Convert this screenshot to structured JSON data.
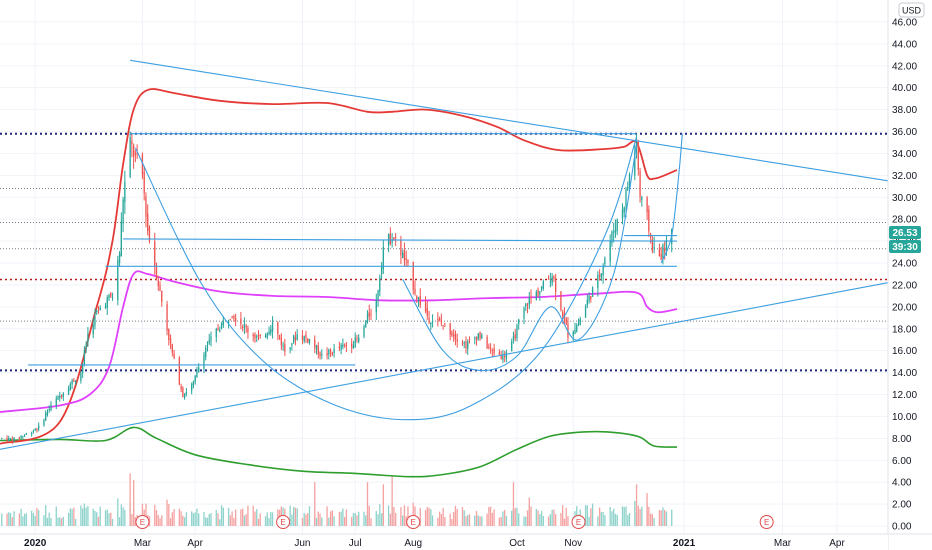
{
  "colors": {
    "up": "#26a69a",
    "down": "#ef5350",
    "trendline": "#3d9fe0",
    "bb_upper": "#e53935",
    "bb_lower": "#e040fb",
    "ma_bottom": "#2e9e2e",
    "grid": "#f0f3fa",
    "level_navy": "#1a237e",
    "level_red": "#b71c1c",
    "badge_price": "#26a69a",
    "badge_timer": "#26a69a",
    "earnings": "#e0494b",
    "axis_text": "#131722"
  },
  "currency_label": "USD",
  "price_badge": "26.53",
  "timer_badge": "39:30",
  "earnings_marker": "E",
  "chart_data": {
    "type": "candlestick",
    "y_axis": {
      "min": 0,
      "max": 48,
      "ticks": [
        "0.00",
        "2.00",
        "4.00",
        "6.00",
        "8.00",
        "10.00",
        "12.00",
        "14.00",
        "16.00",
        "18.00",
        "20.00",
        "22.00",
        "24.00",
        "26.00",
        "28.00",
        "30.00",
        "32.00",
        "34.00",
        "36.00",
        "38.00",
        "40.00",
        "42.00",
        "44.00",
        "46.00"
      ]
    },
    "x_axis": {
      "start": "2019-12-12",
      "end": "2021-04-30",
      "ticks": [
        {
          "label": "2020",
          "date": "2020-01-01",
          "year": true
        },
        {
          "label": "Mar",
          "date": "2020-03-02"
        },
        {
          "label": "Apr",
          "date": "2020-04-01"
        },
        {
          "label": "Jun",
          "date": "2020-06-01"
        },
        {
          "label": "Jul",
          "date": "2020-07-01"
        },
        {
          "label": "Aug",
          "date": "2020-08-03"
        },
        {
          "label": "Oct",
          "date": "2020-10-01"
        },
        {
          "label": "Nov",
          "date": "2020-11-02"
        },
        {
          "label": "2021",
          "date": "2021-01-04",
          "year": true
        },
        {
          "label": "Mar",
          "date": "2021-03-01"
        },
        {
          "label": "Apr",
          "date": "2021-04-01"
        }
      ]
    },
    "price_series": [
      [
        "2019-12-13",
        8.0
      ],
      [
        "2019-12-20",
        7.9
      ],
      [
        "2019-12-27",
        8.4
      ],
      [
        "2020-01-03",
        9.0
      ],
      [
        "2020-01-08",
        10.5
      ],
      [
        "2020-01-13",
        11.5
      ],
      [
        "2020-01-20",
        12.8
      ],
      [
        "2020-01-27",
        14.0
      ],
      [
        "2020-01-31",
        17.5
      ],
      [
        "2020-02-05",
        19.5
      ],
      [
        "2020-02-10",
        20.5
      ],
      [
        "2020-02-14",
        21.0
      ],
      [
        "2020-02-18",
        25.0
      ],
      [
        "2020-02-20",
        30.0
      ],
      [
        "2020-02-24",
        35.0
      ],
      [
        "2020-02-26",
        34.0
      ],
      [
        "2020-03-02",
        32.0
      ],
      [
        "2020-03-05",
        27.0
      ],
      [
        "2020-03-10",
        23.0
      ],
      [
        "2020-03-16",
        18.0
      ],
      [
        "2020-03-20",
        15.0
      ],
      [
        "2020-03-25",
        12.0
      ],
      [
        "2020-03-31",
        13.0
      ],
      [
        "2020-04-06",
        16.0
      ],
      [
        "2020-04-14",
        18.0
      ],
      [
        "2020-04-22",
        19.5
      ],
      [
        "2020-04-30",
        18.0
      ],
      [
        "2020-05-08",
        17.0
      ],
      [
        "2020-05-15",
        18.5
      ],
      [
        "2020-05-22",
        16.0
      ],
      [
        "2020-05-29",
        17.5
      ],
      [
        "2020-06-05",
        17.0
      ],
      [
        "2020-06-12",
        15.5
      ],
      [
        "2020-06-19",
        16.0
      ],
      [
        "2020-06-26",
        16.5
      ],
      [
        "2020-07-03",
        17.0
      ],
      [
        "2020-07-08",
        19.0
      ],
      [
        "2020-07-13",
        20.5
      ],
      [
        "2020-07-17",
        25.5
      ],
      [
        "2020-07-22",
        26.5
      ],
      [
        "2020-07-27",
        25.0
      ],
      [
        "2020-07-31",
        23.5
      ],
      [
        "2020-08-05",
        21.0
      ],
      [
        "2020-08-12",
        19.0
      ],
      [
        "2020-08-19",
        18.5
      ],
      [
        "2020-08-26",
        17.5
      ],
      [
        "2020-09-02",
        16.5
      ],
      [
        "2020-09-09",
        17.5
      ],
      [
        "2020-09-16",
        16.0
      ],
      [
        "2020-09-23",
        15.5
      ],
      [
        "2020-09-28",
        16.5
      ],
      [
        "2020-10-02",
        18.5
      ],
      [
        "2020-10-07",
        20.5
      ],
      [
        "2020-10-14",
        21.5
      ],
      [
        "2020-10-21",
        23.0
      ],
      [
        "2020-10-26",
        20.0
      ],
      [
        "2020-10-30",
        17.5
      ],
      [
        "2020-11-05",
        18.5
      ],
      [
        "2020-11-10",
        20.5
      ],
      [
        "2020-11-16",
        22.5
      ],
      [
        "2020-11-20",
        24.5
      ],
      [
        "2020-11-25",
        27.0
      ],
      [
        "2020-12-01",
        29.5
      ],
      [
        "2020-12-04",
        32.0
      ],
      [
        "2020-12-08",
        35.0
      ],
      [
        "2020-12-10",
        30.0
      ],
      [
        "2020-12-14",
        28.0
      ],
      [
        "2020-12-17",
        25.5
      ],
      [
        "2020-12-21",
        24.5
      ],
      [
        "2020-12-24",
        25.5
      ],
      [
        "2020-12-28",
        26.53
      ]
    ],
    "bollinger_upper": [
      [
        "2019-12-12",
        7.5
      ],
      [
        "2020-01-15",
        9.5
      ],
      [
        "2020-02-05",
        20.0
      ],
      [
        "2020-02-14",
        26.0
      ],
      [
        "2020-02-20",
        33.0
      ],
      [
        "2020-02-26",
        38.0
      ],
      [
        "2020-03-05",
        39.8
      ],
      [
        "2020-03-20",
        39.5
      ],
      [
        "2020-04-15",
        38.8
      ],
      [
        "2020-05-15",
        38.5
      ],
      [
        "2020-06-15",
        38.6
      ],
      [
        "2020-07-08",
        37.8
      ],
      [
        "2020-07-22",
        37.8
      ],
      [
        "2020-08-10",
        38.0
      ],
      [
        "2020-09-01",
        37.4
      ],
      [
        "2020-09-20",
        36.4
      ],
      [
        "2020-10-05",
        35.2
      ],
      [
        "2020-10-25",
        34.3
      ],
      [
        "2020-11-20",
        34.4
      ],
      [
        "2020-12-01",
        34.6
      ],
      [
        "2020-12-08",
        35.0
      ],
      [
        "2020-12-14",
        32.0
      ],
      [
        "2020-12-18",
        31.7
      ],
      [
        "2020-12-24",
        32.0
      ],
      [
        "2020-12-31",
        32.5
      ]
    ],
    "bollinger_lower": [
      [
        "2019-12-12",
        10.4
      ],
      [
        "2020-01-15",
        11.0
      ],
      [
        "2020-02-01",
        12.0
      ],
      [
        "2020-02-12",
        14.5
      ],
      [
        "2020-02-20",
        20.0
      ],
      [
        "2020-02-26",
        23.0
      ],
      [
        "2020-03-05",
        23.0
      ],
      [
        "2020-03-20",
        22.3
      ],
      [
        "2020-04-15",
        21.4
      ],
      [
        "2020-05-15",
        21.0
      ],
      [
        "2020-06-15",
        20.9
      ],
      [
        "2020-07-15",
        20.6
      ],
      [
        "2020-08-15",
        20.6
      ],
      [
        "2020-09-15",
        20.8
      ],
      [
        "2020-10-15",
        20.9
      ],
      [
        "2020-11-15",
        21.2
      ],
      [
        "2020-12-08",
        21.3
      ],
      [
        "2020-12-14",
        20.0
      ],
      [
        "2020-12-20",
        19.5
      ],
      [
        "2020-12-31",
        19.8
      ]
    ],
    "moving_average": [
      [
        "2019-12-12",
        7.8
      ],
      [
        "2020-01-15",
        7.9
      ],
      [
        "2020-02-10",
        7.8
      ],
      [
        "2020-02-26",
        9.0
      ],
      [
        "2020-03-10",
        8.0
      ],
      [
        "2020-04-01",
        6.5
      ],
      [
        "2020-05-01",
        5.6
      ],
      [
        "2020-06-01",
        5.0
      ],
      [
        "2020-07-01",
        4.8
      ],
      [
        "2020-08-01",
        4.5
      ],
      [
        "2020-08-20",
        4.7
      ],
      [
        "2020-09-10",
        5.4
      ],
      [
        "2020-10-01",
        7.0
      ],
      [
        "2020-10-20",
        8.2
      ],
      [
        "2020-11-10",
        8.6
      ],
      [
        "2020-11-28",
        8.5
      ],
      [
        "2020-12-10",
        8.1
      ],
      [
        "2020-12-18",
        7.3
      ],
      [
        "2020-12-31",
        7.2
      ]
    ],
    "horizontal_levels": [
      {
        "price": 35.8,
        "style": "navy-dotted",
        "from": "2019-12-12",
        "to": "2021-04-30"
      },
      {
        "price": 14.2,
        "style": "navy-dotted",
        "from": "2019-12-12",
        "to": "2021-04-30"
      },
      {
        "price": 22.5,
        "style": "red-dotted",
        "from": "2019-12-12",
        "to": "2021-04-30"
      },
      {
        "price": 30.8,
        "style": "gray-dotted",
        "from": "2019-12-12",
        "to": "2021-04-30"
      },
      {
        "price": 27.7,
        "style": "gray-dotted",
        "from": "2019-12-12",
        "to": "2021-04-30"
      },
      {
        "price": 18.7,
        "style": "gray-dotted",
        "from": "2019-12-12",
        "to": "2021-04-30"
      },
      {
        "price": 25.3,
        "style": "gray-dotted",
        "from": "2019-12-12",
        "to": "2021-04-30"
      }
    ],
    "drawings": [
      {
        "type": "trendline",
        "points": [
          [
            "2020-02-24",
            42.5
          ],
          [
            "2021-04-30",
            31.5
          ]
        ]
      },
      {
        "type": "trendline",
        "points": [
          [
            "2019-12-12",
            7.0
          ],
          [
            "2021-04-30",
            22.2
          ]
        ]
      },
      {
        "type": "segment",
        "points": [
          [
            "2020-02-24",
            35.8
          ],
          [
            "2020-12-08",
            35.8
          ]
        ]
      },
      {
        "type": "segment",
        "points": [
          [
            "2020-02-20",
            26.2
          ],
          [
            "2020-12-31",
            26.0
          ]
        ]
      },
      {
        "type": "segment",
        "points": [
          [
            "2020-02-10",
            23.7
          ],
          [
            "2020-12-31",
            23.7
          ]
        ]
      },
      {
        "type": "segment",
        "points": [
          [
            "2019-12-28",
            14.7
          ],
          [
            "2020-07-01",
            14.7
          ]
        ]
      },
      {
        "type": "segment",
        "points": [
          [
            "2020-12-01",
            26.5
          ],
          [
            "2020-12-31",
            26.5
          ]
        ]
      },
      {
        "type": "curve",
        "points": [
          [
            "2020-02-27",
            34.5
          ],
          [
            "2020-04-05",
            22.0
          ],
          [
            "2020-05-10",
            15.0
          ],
          [
            "2020-06-20",
            11.0
          ],
          [
            "2020-07-31",
            9.7
          ],
          [
            "2020-09-05",
            11.0
          ],
          [
            "2020-10-15",
            16.0
          ],
          [
            "2020-11-20",
            26.5
          ],
          [
            "2020-12-08",
            35.5
          ]
        ]
      },
      {
        "type": "curve",
        "points": [
          [
            "2020-07-28",
            22.5
          ],
          [
            "2020-08-20",
            16.0
          ],
          [
            "2020-09-10",
            14.2
          ],
          [
            "2020-10-01",
            15.5
          ],
          [
            "2020-10-20",
            20.0
          ],
          [
            "2020-11-05",
            17.0
          ],
          [
            "2020-11-25",
            23.0
          ],
          [
            "2020-12-08",
            34.8
          ]
        ]
      },
      {
        "type": "curve",
        "points": [
          [
            "2020-12-22",
            24.0
          ],
          [
            "2020-12-28",
            26.5
          ],
          [
            "2021-01-01",
            32.0
          ],
          [
            "2021-01-03",
            35.8
          ]
        ]
      }
    ],
    "volume_spikes": [
      [
        "2020-02-24",
        4.8
      ],
      [
        "2020-02-26",
        4.2
      ],
      [
        "2020-07-17",
        3.8
      ],
      [
        "2020-07-22",
        4.5
      ],
      [
        "2020-07-08",
        4.0
      ],
      [
        "2020-06-08",
        4.0
      ],
      [
        "2020-09-29",
        4.0
      ],
      [
        "2020-10-08",
        2.6
      ],
      [
        "2020-12-08",
        3.8
      ],
      [
        "2020-12-14",
        3.0
      ]
    ],
    "earnings_dates": [
      "2020-03-02",
      "2020-05-21",
      "2020-08-03",
      "2020-11-05",
      "2021-02-20"
    ],
    "timeframe": "daily"
  }
}
